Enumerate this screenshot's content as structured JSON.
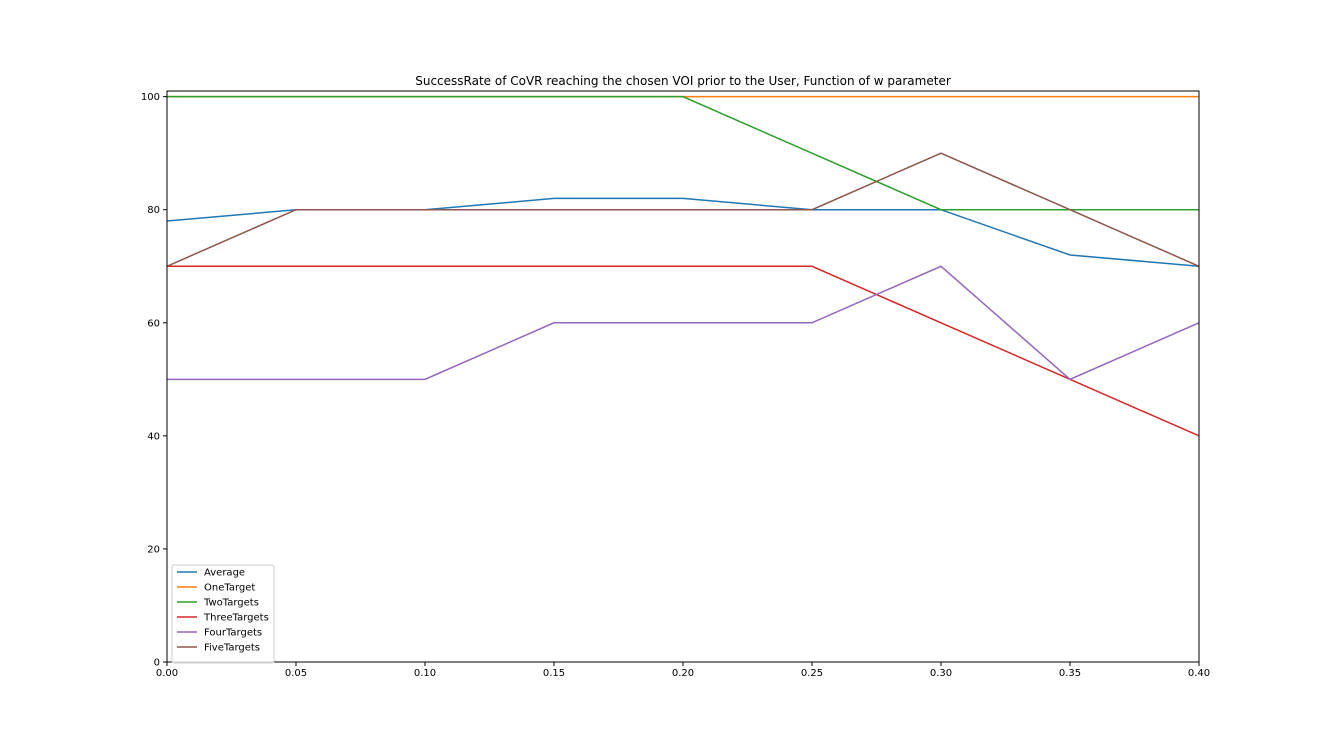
{
  "chart_data": {
    "type": "line",
    "title": "SuccessRate of CoVR reaching the chosen VOI prior to the User, Function of w parameter",
    "xlabel": "",
    "ylabel": "",
    "xlim": [
      0.0,
      0.4
    ],
    "ylim": [
      0,
      101
    ],
    "x": [
      0.0,
      0.05,
      0.1,
      0.15,
      0.2,
      0.25,
      0.3,
      0.35,
      0.4
    ],
    "x_tick_labels": [
      "0.00",
      "0.05",
      "0.10",
      "0.15",
      "0.20",
      "0.25",
      "0.30",
      "0.35",
      "0.40"
    ],
    "y_ticks": [
      0,
      20,
      40,
      60,
      80,
      100
    ],
    "y_tick_labels": [
      "0",
      "20",
      "40",
      "60",
      "80",
      "100"
    ],
    "grid": false,
    "legend_position": "bottom-left",
    "series": [
      {
        "name": "Average",
        "color": "#1f77b4",
        "values": [
          78,
          80,
          80,
          82,
          82,
          80,
          80,
          72,
          70
        ]
      },
      {
        "name": "OneTarget",
        "color": "#ff7f0e",
        "values": [
          100,
          100,
          100,
          100,
          100,
          100,
          100,
          100,
          100
        ]
      },
      {
        "name": "TwoTargets",
        "color": "#2ca02c",
        "values": [
          100,
          100,
          100,
          100,
          100,
          90,
          80,
          80,
          80
        ]
      },
      {
        "name": "ThreeTargets",
        "color": "#d62728",
        "values": [
          70,
          70,
          70,
          70,
          70,
          70,
          60,
          50,
          40
        ]
      },
      {
        "name": "FourTargets",
        "color": "#9467bd",
        "values": [
          50,
          50,
          50,
          60,
          60,
          60,
          70,
          50,
          60
        ]
      },
      {
        "name": "FiveTargets",
        "color": "#8c564b",
        "values": [
          70,
          80,
          80,
          80,
          80,
          80,
          90,
          80,
          70
        ]
      }
    ]
  }
}
